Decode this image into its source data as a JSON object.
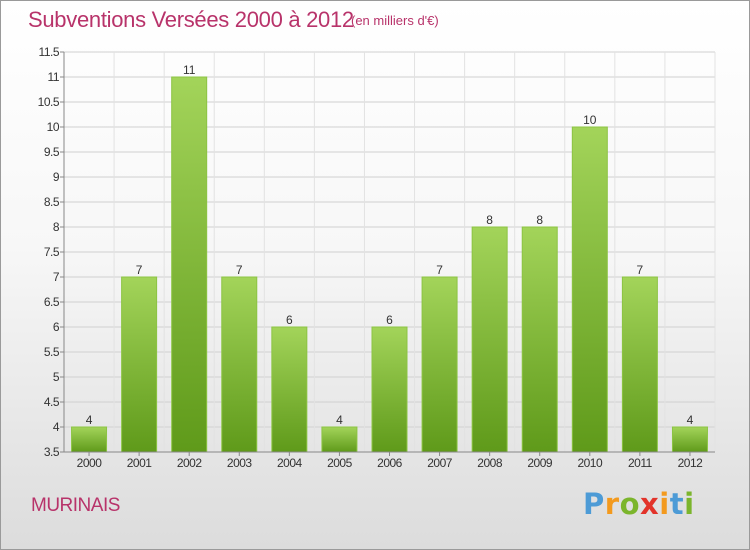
{
  "header": {
    "title": "Subventions Versées 2000 à 2012",
    "subtitle": "(en milliers d'€)"
  },
  "commune": "MURINAIS",
  "logo": {
    "text": "Proxiti",
    "colors": [
      "#4d9bd6",
      "#f39a1e",
      "#7bb52c",
      "#e2332a",
      "#f39a1e",
      "#4d9bd6",
      "#7bb52c"
    ]
  },
  "colors": {
    "title": "#b8336a",
    "bar_top": "#9fd255",
    "bar_bottom": "#5f9a1a",
    "grid": "#cccccc",
    "axis_text": "#333333"
  },
  "chart_data": {
    "type": "bar",
    "title": "Subventions Versées 2000 à 2012",
    "subtitle": "(en milliers d'€)",
    "categories": [
      "2000",
      "2001",
      "2002",
      "2003",
      "2004",
      "2005",
      "2006",
      "2007",
      "2008",
      "2009",
      "2010",
      "2011",
      "2012"
    ],
    "values": [
      4,
      7,
      11,
      7,
      6,
      4,
      6,
      7,
      8,
      8,
      10,
      7,
      4
    ],
    "data_labels": [
      "4",
      "7",
      "11",
      "7",
      "6",
      "4",
      "6",
      "7",
      "8",
      "8",
      "10",
      "7",
      "4"
    ],
    "ylim": [
      3.5,
      11.5
    ],
    "yticks": [
      "3.5",
      "4",
      "4.5",
      "5",
      "5.5",
      "6",
      "6.5",
      "7",
      "7.5",
      "8",
      "8.5",
      "9",
      "9.5",
      "10",
      "10.5",
      "11",
      "11.5"
    ],
    "xlabel": "",
    "ylabel": "",
    "grid": true
  }
}
